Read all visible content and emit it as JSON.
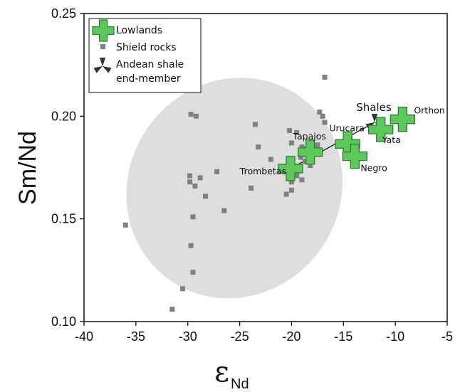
{
  "chart_data": {
    "type": "scatter",
    "xlabel_main": "ε",
    "xlabel_sub": "Nd",
    "ylabel": "Sm/Nd",
    "xlim": [
      -40,
      -5
    ],
    "ylim": [
      0.1,
      0.25
    ],
    "xticks": [
      "-40",
      "-35",
      "-30",
      "-25",
      "-20",
      "-15",
      "-10",
      "-5"
    ],
    "yticks": [
      "0.10",
      "0.15",
      "0.20",
      "0.25"
    ],
    "grid": false,
    "legend_position": "top-left",
    "colors": {
      "lowlands": "#5cc85c",
      "lowlands_stroke": "#2f7d2f",
      "shield": "#808080",
      "ellipse": "#dedede",
      "andean": "#333333"
    },
    "legend": [
      {
        "label": "Lowlands",
        "marker": "cross"
      },
      {
        "label": "Shield rocks",
        "marker": "square"
      },
      {
        "label": "Andean shale",
        "marker": "tristar"
      },
      {
        "label": "end-member",
        "marker": "none"
      }
    ],
    "shield_ellipse": {
      "center": [
        -25.5,
        0.165
      ],
      "semi_axes_data": [
        17.5,
        0.049
      ],
      "rotation_note": "tilted upward to the right"
    },
    "series": [
      {
        "name": "Shield rocks",
        "marker": "square",
        "points": [
          [
            -36.0,
            0.147
          ],
          [
            -31.5,
            0.106
          ],
          [
            -30.5,
            0.116
          ],
          [
            -29.5,
            0.124
          ],
          [
            -29.7,
            0.137
          ],
          [
            -29.5,
            0.151
          ],
          [
            -29.8,
            0.171
          ],
          [
            -29.8,
            0.168
          ],
          [
            -29.3,
            0.166
          ],
          [
            -28.8,
            0.17
          ],
          [
            -28.3,
            0.161
          ],
          [
            -29.7,
            0.201
          ],
          [
            -29.2,
            0.2
          ],
          [
            -27.2,
            0.173
          ],
          [
            -26.5,
            0.154
          ],
          [
            -23.9,
            0.165
          ],
          [
            -23.5,
            0.196
          ],
          [
            -23.2,
            0.185
          ],
          [
            -22.0,
            0.179
          ],
          [
            -20.5,
            0.162
          ],
          [
            -20.0,
            0.164
          ],
          [
            -20.0,
            0.168
          ],
          [
            -19.5,
            0.171
          ],
          [
            -19.0,
            0.169
          ],
          [
            -20.0,
            0.187
          ],
          [
            -20.2,
            0.193
          ],
          [
            -19.5,
            0.192
          ],
          [
            -19.1,
            0.18
          ],
          [
            -18.7,
            0.178
          ],
          [
            -18.2,
            0.176
          ],
          [
            -19.0,
            0.185
          ],
          [
            -18.5,
            0.184
          ],
          [
            -17.5,
            0.186
          ],
          [
            -17.3,
            0.202
          ],
          [
            -17.0,
            0.2
          ],
          [
            -16.8,
            0.197
          ],
          [
            -16.8,
            0.219
          ],
          [
            -15.0,
            0.187
          ]
        ]
      },
      {
        "name": "Lowlands",
        "marker": "cross",
        "points": [
          {
            "label": "Trombetas",
            "x": -20.1,
            "y": 0.1745
          },
          {
            "label": "Tapajos",
            "x": -18.2,
            "y": 0.1825
          },
          {
            "label": "Urucara",
            "x": -14.6,
            "y": 0.1865
          },
          {
            "label": "Negro",
            "x": -13.9,
            "y": 0.1805
          },
          {
            "label": "Yata",
            "x": -11.4,
            "y": 0.1935
          },
          {
            "label": "Orthon",
            "x": -9.3,
            "y": 0.1985
          }
        ]
      },
      {
        "name": "Andean shale end-member",
        "marker": "tristar",
        "points": [
          {
            "label": "Shales",
            "x": -12.0,
            "y": 0.197
          }
        ]
      }
    ],
    "mixing_line": [
      [
        -20.1,
        0.1745
      ],
      [
        -12.0,
        0.197
      ]
    ]
  }
}
